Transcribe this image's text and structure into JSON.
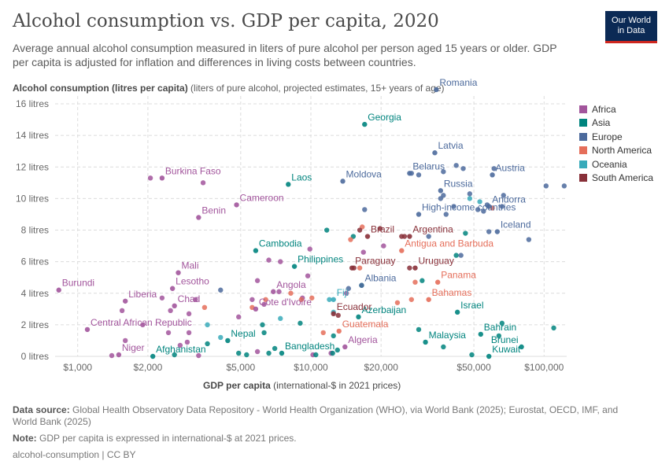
{
  "header": {
    "title": "Alcohol consumption vs. GDP per capita, 2020",
    "subtitle": "Average annual alcohol consumption measured in liters of pure alcohol per person aged 15 years or older. GDP per capita is adjusted for inflation and differences in living costs between countries.",
    "logo_line1": "Our World",
    "logo_line2": "in Data"
  },
  "axis": {
    "ylabel_bold": "Alcohol consumption (litres per capita)",
    "ylabel_rest": " (liters of pure alcohol, projected estimates, 15+ years of age)",
    "xlabel_bold": "GDP per capita",
    "xlabel_rest": " (international-$ in 2021 prices)"
  },
  "footer": {
    "source_label": "Data source:",
    "source_text": " Global Health Observatory Data Repository - World Health Organization (WHO), via World Bank (2025); Eurostat, OECD, IMF, and World Bank (2025)",
    "note_label": "Note:",
    "note_text": " GDP per capita is expressed in international-$ at 2021 prices.",
    "credit": "alcohol-consumption | CC BY"
  },
  "colors": {
    "Africa": "#a2559c",
    "Asia": "#00847e",
    "Europe": "#4c6a9c",
    "North America": "#e56e5a",
    "Oceania": "#38aaba",
    "South America": "#883039"
  },
  "chart_data": {
    "type": "scatter",
    "x_scale": "log",
    "xlim": [
      800,
      125000
    ],
    "ylim": [
      0,
      16.5
    ],
    "x_ticks": [
      1000,
      2000,
      5000,
      10000,
      20000,
      50000,
      100000
    ],
    "x_tick_labels": [
      "$1,000",
      "$2,000",
      "$5,000",
      "$10,000",
      "$20,000",
      "$50,000",
      "$100,000"
    ],
    "y_ticks": [
      0,
      2,
      4,
      6,
      8,
      10,
      12,
      14,
      16
    ],
    "y_tick_labels": [
      "0 litres",
      "2 litres",
      "4 litres",
      "6 litres",
      "8 litres",
      "10 litres",
      "12 litres",
      "14 litres",
      "16 litres"
    ],
    "grid": true,
    "legend_position": "right",
    "legend": [
      "Africa",
      "Asia",
      "Europe",
      "North America",
      "Oceania",
      "South America"
    ],
    "labeled_points": [
      {
        "label": "Romania",
        "region": "Europe",
        "x": 34500,
        "y": 16.9
      },
      {
        "label": "Georgia",
        "region": "Asia",
        "x": 17000,
        "y": 14.7
      },
      {
        "label": "Latvia",
        "region": "Europe",
        "x": 34000,
        "y": 12.9
      },
      {
        "label": "Belarus",
        "region": "Europe",
        "x": 26500,
        "y": 11.6
      },
      {
        "label": "Austria",
        "region": "Europe",
        "x": 60000,
        "y": 11.5
      },
      {
        "label": "Burkina Faso",
        "region": "Africa",
        "x": 2300,
        "y": 11.3
      },
      {
        "label": "Laos",
        "region": "Asia",
        "x": 8000,
        "y": 10.9
      },
      {
        "label": "Moldova",
        "region": "Europe",
        "x": 13700,
        "y": 11.1
      },
      {
        "label": "Russia",
        "region": "Europe",
        "x": 36000,
        "y": 10.5
      },
      {
        "label": "Andorra",
        "region": "Europe",
        "x": 58000,
        "y": 9.5
      },
      {
        "label": "Cameroon",
        "region": "Africa",
        "x": 4800,
        "y": 9.6
      },
      {
        "label": "High-income countries",
        "region": "Europe",
        "x": 29000,
        "y": 9.0
      },
      {
        "label": "Benin",
        "region": "Africa",
        "x": 3300,
        "y": 8.8
      },
      {
        "label": "Brazil",
        "region": "South America",
        "x": 17500,
        "y": 7.6
      },
      {
        "label": "Argentina",
        "region": "South America",
        "x": 26500,
        "y": 7.6
      },
      {
        "label": "Iceland",
        "region": "Europe",
        "x": 63000,
        "y": 7.9
      },
      {
        "label": "Antigua and Barbuda",
        "region": "North America",
        "x": 24500,
        "y": 6.7
      },
      {
        "label": "Cambodia",
        "region": "Asia",
        "x": 5800,
        "y": 6.7
      },
      {
        "label": "Philippines",
        "region": "Asia",
        "x": 8500,
        "y": 5.7
      },
      {
        "label": "Paraguay",
        "region": "South America",
        "x": 15000,
        "y": 5.6
      },
      {
        "label": "Uruguay",
        "region": "South America",
        "x": 28000,
        "y": 5.6
      },
      {
        "label": "Mali",
        "region": "Africa",
        "x": 2700,
        "y": 5.3
      },
      {
        "label": "Burundi",
        "region": "Africa",
        "x": 830,
        "y": 4.2
      },
      {
        "label": "Lesotho",
        "region": "Africa",
        "x": 2550,
        "y": 4.3
      },
      {
        "label": "Albania",
        "region": "Europe",
        "x": 16500,
        "y": 4.5
      },
      {
        "label": "Panama",
        "region": "North America",
        "x": 35000,
        "y": 4.7
      },
      {
        "label": "Angola",
        "region": "Africa",
        "x": 6900,
        "y": 4.1
      },
      {
        "label": "Fiji",
        "region": "Oceania",
        "x": 12500,
        "y": 3.6
      },
      {
        "label": "Bahamas",
        "region": "North America",
        "x": 32000,
        "y": 3.6
      },
      {
        "label": "Liberia",
        "region": "Africa",
        "x": 1600,
        "y": 3.5
      },
      {
        "label": "Chad",
        "region": "Africa",
        "x": 2600,
        "y": 3.2
      },
      {
        "label": "Cote d'Ivoire",
        "region": "Africa",
        "x": 5800,
        "y": 3.0
      },
      {
        "label": "Israel",
        "region": "Asia",
        "x": 42500,
        "y": 2.8
      },
      {
        "label": "Azerbaijan",
        "region": "Asia",
        "x": 16000,
        "y": 2.5
      },
      {
        "label": "Ecuador",
        "region": "South America",
        "x": 12500,
        "y": 2.7
      },
      {
        "label": "Central African Republic",
        "region": "Africa",
        "x": 1100,
        "y": 1.7
      },
      {
        "label": "Guatemala",
        "region": "North America",
        "x": 13200,
        "y": 1.6
      },
      {
        "label": "Bahrain",
        "region": "Asia",
        "x": 53500,
        "y": 1.4
      },
      {
        "label": "Nepal",
        "region": "Asia",
        "x": 4400,
        "y": 1.0
      },
      {
        "label": "Malaysia",
        "region": "Asia",
        "x": 31000,
        "y": 0.9
      },
      {
        "label": "Algeria",
        "region": "Africa",
        "x": 14000,
        "y": 0.6
      },
      {
        "label": "Brunei",
        "region": "Asia",
        "x": 80000,
        "y": 0.6
      },
      {
        "label": "Niger",
        "region": "Africa",
        "x": 1500,
        "y": 0.1
      },
      {
        "label": "Afghanistan",
        "region": "Asia",
        "x": 2100,
        "y": 0.0
      },
      {
        "label": "Bangladesh",
        "region": "Asia",
        "x": 7500,
        "y": 0.2
      },
      {
        "label": "Kuwait",
        "region": "Asia",
        "x": 58000,
        "y": 0.0
      }
    ],
    "points": [
      {
        "region": "Africa",
        "x": 1400,
        "y": 0.05
      },
      {
        "region": "Africa",
        "x": 1600,
        "y": 1.0
      },
      {
        "region": "Africa",
        "x": 1550,
        "y": 2.9
      },
      {
        "region": "Africa",
        "x": 1900,
        "y": 2.0
      },
      {
        "region": "Africa",
        "x": 2300,
        "y": 3.7
      },
      {
        "region": "Africa",
        "x": 2450,
        "y": 1.5
      },
      {
        "region": "Africa",
        "x": 2750,
        "y": 0.7
      },
      {
        "region": "Africa",
        "x": 2950,
        "y": 0.9
      },
      {
        "region": "Africa",
        "x": 3300,
        "y": 0.05
      },
      {
        "region": "Africa",
        "x": 3200,
        "y": 3.6
      },
      {
        "region": "Africa",
        "x": 3450,
        "y": 11.0
      },
      {
        "region": "Africa",
        "x": 3000,
        "y": 2.7
      },
      {
        "region": "Africa",
        "x": 2500,
        "y": 2.9
      },
      {
        "region": "Africa",
        "x": 5900,
        "y": 0.3
      },
      {
        "region": "Africa",
        "x": 5600,
        "y": 3.6
      },
      {
        "region": "Africa",
        "x": 5900,
        "y": 4.8
      },
      {
        "region": "Africa",
        "x": 6300,
        "y": 3.3
      },
      {
        "region": "Africa",
        "x": 7300,
        "y": 4.1
      },
      {
        "region": "Africa",
        "x": 9700,
        "y": 5.1
      },
      {
        "region": "Africa",
        "x": 9200,
        "y": 3.7
      },
      {
        "region": "Africa",
        "x": 10200,
        "y": 0.1
      },
      {
        "region": "Africa",
        "x": 12200,
        "y": 0.2
      },
      {
        "region": "Africa",
        "x": 6600,
        "y": 6.1
      },
      {
        "region": "Africa",
        "x": 7400,
        "y": 6.0
      },
      {
        "region": "Africa",
        "x": 9900,
        "y": 6.8
      },
      {
        "region": "Africa",
        "x": 14200,
        "y": 4.0
      },
      {
        "region": "Africa",
        "x": 16800,
        "y": 6.6
      },
      {
        "region": "Africa",
        "x": 20500,
        "y": 7.0
      },
      {
        "region": "Africa",
        "x": 2050,
        "y": 11.3
      },
      {
        "region": "Africa",
        "x": 4900,
        "y": 2.5
      },
      {
        "region": "Africa",
        "x": 3000,
        "y": 1.5
      },
      {
        "region": "Asia",
        "x": 2600,
        "y": 0.1
      },
      {
        "region": "Asia",
        "x": 3600,
        "y": 0.8
      },
      {
        "region": "Asia",
        "x": 4900,
        "y": 0.2
      },
      {
        "region": "Asia",
        "x": 5300,
        "y": 0.1
      },
      {
        "region": "Asia",
        "x": 6600,
        "y": 0.2
      },
      {
        "region": "Asia",
        "x": 7000,
        "y": 0.5
      },
      {
        "region": "Asia",
        "x": 6200,
        "y": 2.0
      },
      {
        "region": "Asia",
        "x": 6300,
        "y": 1.5
      },
      {
        "region": "Asia",
        "x": 9000,
        "y": 2.1
      },
      {
        "region": "Asia",
        "x": 10500,
        "y": 0.1
      },
      {
        "region": "Asia",
        "x": 12400,
        "y": 0.2
      },
      {
        "region": "Asia",
        "x": 13000,
        "y": 0.4
      },
      {
        "region": "Asia",
        "x": 12500,
        "y": 1.3
      },
      {
        "region": "Asia",
        "x": 11700,
        "y": 8.0
      },
      {
        "region": "Asia",
        "x": 15200,
        "y": 7.6
      },
      {
        "region": "Asia",
        "x": 16500,
        "y": 4.5
      },
      {
        "region": "Asia",
        "x": 29000,
        "y": 1.7
      },
      {
        "region": "Asia",
        "x": 37000,
        "y": 0.6
      },
      {
        "region": "Asia",
        "x": 30000,
        "y": 4.8
      },
      {
        "region": "Asia",
        "x": 42000,
        "y": 6.4
      },
      {
        "region": "Asia",
        "x": 46000,
        "y": 7.8
      },
      {
        "region": "Asia",
        "x": 49000,
        "y": 0.1
      },
      {
        "region": "Asia",
        "x": 66000,
        "y": 2.1
      },
      {
        "region": "Asia",
        "x": 64000,
        "y": 1.3
      },
      {
        "region": "Asia",
        "x": 110000,
        "y": 1.8
      },
      {
        "region": "Europe",
        "x": 4100,
        "y": 4.2
      },
      {
        "region": "Europe",
        "x": 14500,
        "y": 4.3
      },
      {
        "region": "Europe",
        "x": 27000,
        "y": 11.6
      },
      {
        "region": "Europe",
        "x": 29000,
        "y": 11.5
      },
      {
        "region": "Europe",
        "x": 37000,
        "y": 11.7
      },
      {
        "region": "Europe",
        "x": 42000,
        "y": 12.1
      },
      {
        "region": "Europe",
        "x": 45000,
        "y": 11.9
      },
      {
        "region": "Europe",
        "x": 37000,
        "y": 10.2
      },
      {
        "region": "Europe",
        "x": 36000,
        "y": 10.0
      },
      {
        "region": "Europe",
        "x": 41000,
        "y": 9.5
      },
      {
        "region": "Europe",
        "x": 48000,
        "y": 10.3
      },
      {
        "region": "Europe",
        "x": 52000,
        "y": 9.3
      },
      {
        "region": "Europe",
        "x": 55000,
        "y": 9.2
      },
      {
        "region": "Europe",
        "x": 57000,
        "y": 9.6
      },
      {
        "region": "Europe",
        "x": 61000,
        "y": 11.9
      },
      {
        "region": "Europe",
        "x": 66000,
        "y": 9.5
      },
      {
        "region": "Europe",
        "x": 67000,
        "y": 10.2
      },
      {
        "region": "Europe",
        "x": 58000,
        "y": 7.9
      },
      {
        "region": "Europe",
        "x": 86000,
        "y": 7.4
      },
      {
        "region": "Europe",
        "x": 102000,
        "y": 10.8
      },
      {
        "region": "Europe",
        "x": 122000,
        "y": 10.8
      },
      {
        "region": "Europe",
        "x": 44000,
        "y": 6.4
      },
      {
        "region": "Europe",
        "x": 32000,
        "y": 7.6
      },
      {
        "region": "Europe",
        "x": 38000,
        "y": 9.0
      },
      {
        "region": "Europe",
        "x": 17000,
        "y": 9.3
      },
      {
        "region": "North America",
        "x": 5600,
        "y": 3.1
      },
      {
        "region": "North America",
        "x": 6400,
        "y": 3.6
      },
      {
        "region": "North America",
        "x": 8200,
        "y": 4.0
      },
      {
        "region": "North America",
        "x": 9100,
        "y": 3.6
      },
      {
        "region": "North America",
        "x": 10100,
        "y": 3.7
      },
      {
        "region": "North America",
        "x": 11300,
        "y": 1.5
      },
      {
        "region": "North America",
        "x": 14800,
        "y": 7.4
      },
      {
        "region": "North America",
        "x": 16600,
        "y": 8.2
      },
      {
        "region": "North America",
        "x": 16200,
        "y": 5.6
      },
      {
        "region": "North America",
        "x": 23500,
        "y": 3.4
      },
      {
        "region": "North America",
        "x": 27000,
        "y": 3.6
      },
      {
        "region": "North America",
        "x": 28000,
        "y": 4.7
      },
      {
        "region": "North America",
        "x": 60000,
        "y": 9.4
      },
      {
        "region": "North America",
        "x": 3500,
        "y": 3.1
      },
      {
        "region": "Oceania",
        "x": 3600,
        "y": 2.0
      },
      {
        "region": "Oceania",
        "x": 4100,
        "y": 1.2
      },
      {
        "region": "Oceania",
        "x": 7400,
        "y": 2.4
      },
      {
        "region": "Oceania",
        "x": 12000,
        "y": 3.6
      },
      {
        "region": "Oceania",
        "x": 12500,
        "y": 2.8
      },
      {
        "region": "Oceania",
        "x": 48000,
        "y": 10.0
      },
      {
        "region": "Oceania",
        "x": 53000,
        "y": 9.8
      },
      {
        "region": "South America",
        "x": 13100,
        "y": 2.6
      },
      {
        "region": "South America",
        "x": 15300,
        "y": 5.6
      },
      {
        "region": "South America",
        "x": 16200,
        "y": 8.0
      },
      {
        "region": "South America",
        "x": 19800,
        "y": 8.1
      },
      {
        "region": "South America",
        "x": 25200,
        "y": 7.6
      },
      {
        "region": "South America",
        "x": 26500,
        "y": 5.6
      },
      {
        "region": "South America",
        "x": 24500,
        "y": 7.6
      }
    ]
  }
}
